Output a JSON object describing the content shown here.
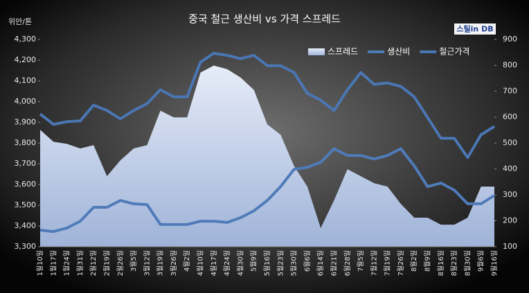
{
  "chart_data": {
    "type": "line",
    "title": "중국 철근 생산비 vs 가격 스프레드",
    "y_label": "위안/톤",
    "logo": "스틸in DB",
    "categories": [
      "1월10일",
      "1월17일",
      "1월24일",
      "1월31일",
      "2월12일",
      "2월19일",
      "2월26일",
      "3월5일",
      "3월12일",
      "3월19일",
      "3월26일",
      "4월2일",
      "4월10일",
      "4월17일",
      "4월24일",
      "4월30일",
      "5월9일",
      "5월16일",
      "5월23일",
      "5월30일",
      "6월6일",
      "6월14일",
      "6월21일",
      "6월28일",
      "7월5일",
      "7월12일",
      "7월19일",
      "7월26일",
      "8월2일",
      "8월9일",
      "8월16일",
      "8월23일",
      "8월30일",
      "9월6일",
      "9월16일"
    ],
    "series": [
      {
        "name": "스프레드",
        "kind": "area",
        "axis": "y2",
        "color": "#c9d5ee",
        "values": [
          551,
          505,
          497,
          479,
          492,
          372,
          433,
          479,
          492,
          625,
          599,
          599,
          772,
          799,
          785,
          753,
          705,
          572,
          532,
          412,
          332,
          172,
          279,
          399,
          372,
          345,
          332,
          265,
          212,
          212,
          185,
          185,
          212,
          332,
          332
        ]
      },
      {
        "name": "생산비",
        "kind": "line",
        "color": "#4f7bb9",
        "values": [
          3380,
          3373,
          3390,
          3423,
          3490,
          3490,
          3523,
          3507,
          3503,
          3407,
          3407,
          3407,
          3423,
          3423,
          3417,
          3440,
          3473,
          3523,
          3590,
          3673,
          3683,
          3707,
          3773,
          3740,
          3740,
          3723,
          3740,
          3773,
          3690,
          3590,
          3607,
          3573,
          3507,
          3507,
          3547
        ]
      },
      {
        "name": "철근가격",
        "kind": "line",
        "color": "#4a76b4",
        "values": [
          3940,
          3890,
          3903,
          3907,
          3983,
          3957,
          3917,
          3957,
          3990,
          4057,
          4023,
          4023,
          4190,
          4233,
          4223,
          4207,
          4223,
          4173,
          4173,
          4140,
          4040,
          4007,
          3957,
          4057,
          4140,
          4083,
          4090,
          4073,
          4023,
          3923,
          3823,
          3823,
          3730,
          3840,
          3880
        ]
      }
    ],
    "ylim": [
      3300,
      4300
    ],
    "yticks": [
      {
        "value": 3300,
        "label": "3,300"
      },
      {
        "value": 3400,
        "label": "3,400"
      },
      {
        "value": 3500,
        "label": "3,500"
      },
      {
        "value": 3600,
        "label": "3,600"
      },
      {
        "value": 3700,
        "label": "3,700"
      },
      {
        "value": 3800,
        "label": "3,800"
      },
      {
        "value": 3900,
        "label": "3,900"
      },
      {
        "value": 4000,
        "label": "4,000"
      },
      {
        "value": 4100,
        "label": "4,100"
      },
      {
        "value": 4200,
        "label": "4,200"
      },
      {
        "value": 4300,
        "label": "4,300"
      }
    ],
    "y2lim": [
      100,
      900
    ],
    "y2ticks": [
      100,
      200,
      300,
      400,
      500,
      600,
      700,
      800,
      900
    ],
    "legend": "top-right"
  }
}
